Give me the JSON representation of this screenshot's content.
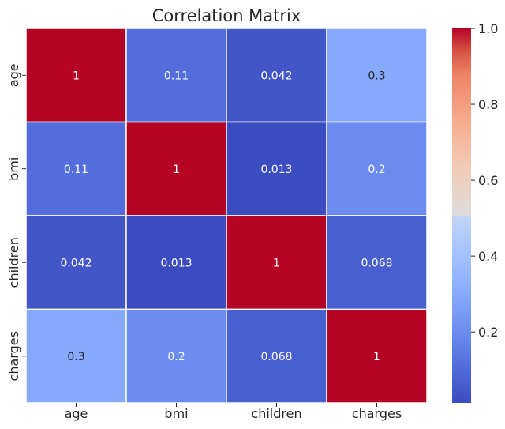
{
  "chart_data": {
    "type": "heatmap",
    "title": "Correlation Matrix",
    "rows": [
      "age",
      "bmi",
      "children",
      "charges"
    ],
    "columns": [
      "age",
      "bmi",
      "children",
      "charges"
    ],
    "values": [
      [
        1,
        0.11,
        0.042,
        0.3
      ],
      [
        0.11,
        1,
        0.013,
        0.2
      ],
      [
        0.042,
        0.013,
        1,
        0.068
      ],
      [
        0.3,
        0.2,
        0.068,
        1
      ]
    ],
    "labels": [
      [
        "1",
        "0.11",
        "0.042",
        "0.3"
      ],
      [
        "0.11",
        "1",
        "0.013",
        "0.2"
      ],
      [
        "0.042",
        "0.013",
        "1",
        "0.068"
      ],
      [
        "0.3",
        "0.2",
        "0.068",
        "1"
      ]
    ],
    "colormap": "coolwarm",
    "color_range": [
      0.013,
      1
    ],
    "colorbar_ticks": [
      0.2,
      0.4,
      0.6,
      0.8,
      1.0
    ],
    "colorbar_tick_labels": [
      "0.2",
      "0.4",
      "0.6",
      "0.8",
      "1.0"
    ],
    "grid": true,
    "legend": "colorbar-right"
  }
}
